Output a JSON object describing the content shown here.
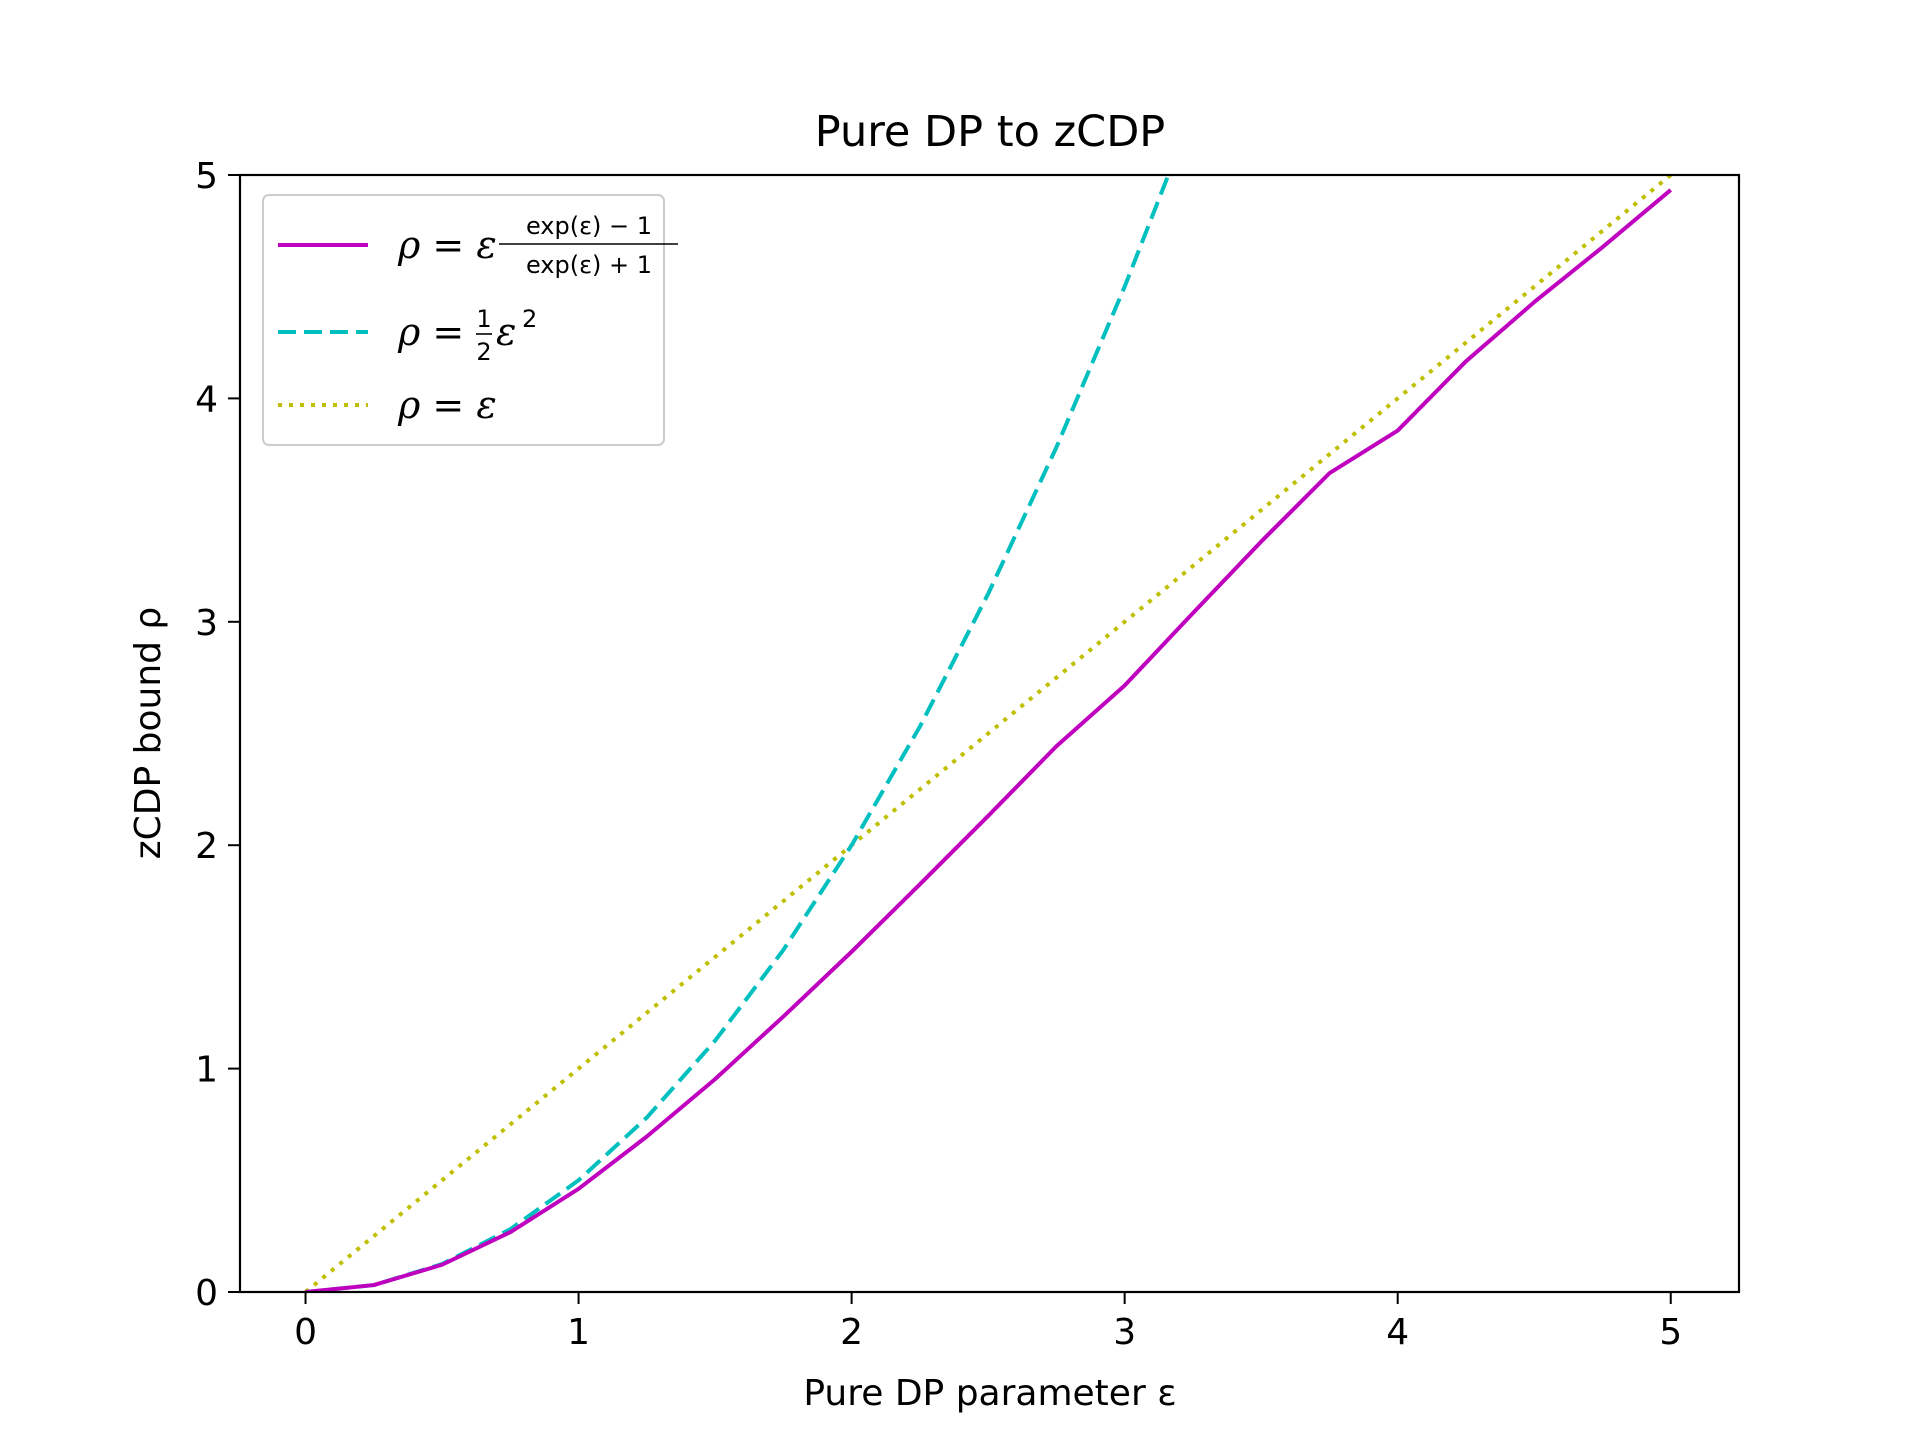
{
  "chart_data": {
    "type": "line",
    "title": "Pure DP to zCDP",
    "xlabel": "Pure DP parameter ε",
    "ylabel": "zCDP bound ρ",
    "xlim": [
      -0.24,
      5.25
    ],
    "ylim": [
      0,
      5
    ],
    "xticks": [
      0,
      1,
      2,
      3,
      4,
      5
    ],
    "yticks": [
      0,
      1,
      2,
      3,
      4,
      5
    ],
    "grid": false,
    "legend_position": "top-left",
    "series": [
      {
        "name": "ρ = ε (exp(ε) − 1)/(exp(ε) + 1)",
        "label_parts": {
          "lhs": "ρ = ε",
          "num": "exp(ε) − 1",
          "den": "exp(ε) + 1"
        },
        "color": "#bf00bf",
        "style": "solid",
        "x": [
          0,
          0.25,
          0.5,
          0.75,
          1.0,
          1.25,
          1.5,
          1.75,
          2.0,
          2.25,
          2.5,
          2.75,
          3.0,
          3.25,
          3.5,
          3.75,
          4.0,
          4.25,
          4.5,
          4.75,
          5.0
        ],
        "y": [
          0,
          0.031,
          0.122,
          0.268,
          0.462,
          0.696,
          0.953,
          1.233,
          1.523,
          1.825,
          2.131,
          2.443,
          2.715,
          3.039,
          3.359,
          3.665,
          3.856,
          4.166,
          4.431,
          4.677,
          4.933
        ]
      },
      {
        "name": "ρ = ½ε²",
        "label_parts": {
          "lhs": "ρ = ",
          "num": "1",
          "den": "2",
          "rhs": "ε",
          "sup": "2"
        },
        "color": "#00bfbf",
        "style": "dashed",
        "x": [
          0,
          0.25,
          0.5,
          0.75,
          1.0,
          1.25,
          1.5,
          1.75,
          2.0,
          2.25,
          2.5,
          2.75,
          3.0,
          3.16
        ],
        "y": [
          0,
          0.031,
          0.125,
          0.281,
          0.5,
          0.781,
          1.125,
          1.531,
          2.0,
          2.531,
          3.125,
          3.781,
          4.5,
          5.0
        ]
      },
      {
        "name": "ρ = ε",
        "label_parts": {
          "lhs": "ρ = ε"
        },
        "color": "#bfbf00",
        "style": "dotted",
        "x": [
          0,
          5
        ],
        "y": [
          0,
          5
        ]
      }
    ]
  }
}
